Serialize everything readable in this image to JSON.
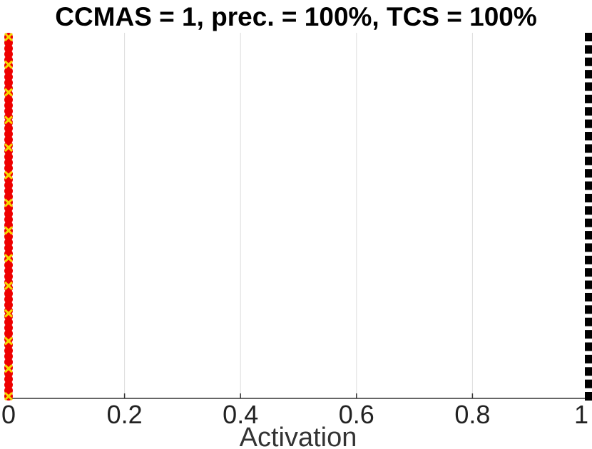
{
  "chart_data": {
    "type": "scatter",
    "title": "CCMAS = 1, prec. = 100%, TCS = 100%",
    "xlabel": "Activation",
    "ylabel": "",
    "xlim": [
      0,
      1
    ],
    "xticks": [
      0,
      0.2,
      0.4,
      0.6,
      0.8,
      1
    ],
    "xtick_labels": [
      "0",
      "0.2",
      "0.4",
      "0.6",
      "0.8",
      "1"
    ],
    "grid": "vertical",
    "legend": "none",
    "series": [
      {
        "x": 0,
        "count": 64,
        "color": "#ee0000",
        "marker": "circle"
      },
      {
        "x": 0,
        "count": 14,
        "color": "#f5d800",
        "marker": "x"
      },
      {
        "x": 1,
        "count": 30,
        "color": "#000000",
        "marker": "square"
      }
    ],
    "colors": {
      "grid": "#dddddd",
      "axis": "#333333"
    }
  }
}
